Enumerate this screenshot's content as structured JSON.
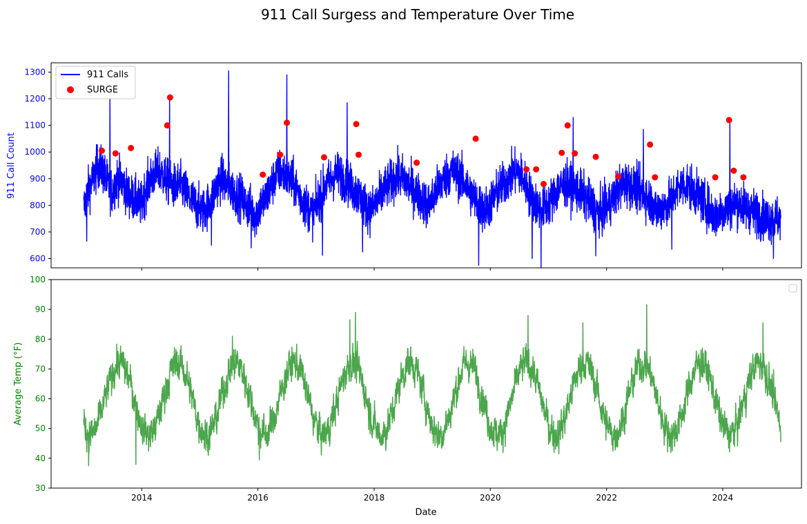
{
  "figure": {
    "title": "911 Call Surgess and Temperature Over Time"
  },
  "chart_data": [
    {
      "type": "line",
      "xlabel": "",
      "ylabel": "911 Call Count",
      "ylabel_color": "#0000ff",
      "xlim": [
        "2012-06-10",
        "2025-05-10"
      ],
      "ylim": [
        565,
        1335
      ],
      "x_ticks": [
        {
          "date": "2014-01-01",
          "label": "2014"
        },
        {
          "date": "2016-01-01",
          "label": "2016"
        },
        {
          "date": "2018-01-01",
          "label": "2018"
        },
        {
          "date": "2020-01-01",
          "label": "2020"
        },
        {
          "date": "2022-01-01",
          "label": "2022"
        },
        {
          "date": "2024-01-01",
          "label": "2024"
        }
      ],
      "y_ticks": [
        600,
        700,
        800,
        900,
        1000,
        1100,
        1200,
        1300
      ],
      "legend_position": "top-left",
      "grid": false,
      "series": [
        {
          "name": "911 Calls",
          "kind": "line",
          "color": "#0000ff",
          "x_range": [
            "2013-01-01",
            "2024-12-31"
          ],
          "x_step_days": 30,
          "values": [
            790,
            860,
            900,
            950,
            930,
            880,
            850,
            900,
            890,
            850,
            830,
            820,
            800,
            860,
            900,
            920,
            930,
            900,
            880,
            870,
            880,
            860,
            830,
            810,
            790,
            780,
            800,
            830,
            880,
            900,
            880,
            860,
            840,
            830,
            800,
            790,
            760,
            800,
            820,
            860,
            900,
            930,
            920,
            900,
            880,
            850,
            810,
            790,
            770,
            810,
            850,
            880,
            900,
            920,
            910,
            890,
            870,
            850,
            830,
            800,
            780,
            800,
            830,
            860,
            880,
            900,
            910,
            900,
            880,
            860,
            840,
            820,
            800,
            820,
            860,
            890,
            910,
            930,
            920,
            900,
            880,
            850,
            820,
            800,
            780,
            800,
            830,
            860,
            880,
            900,
            920,
            930,
            900,
            860,
            820,
            800,
            790,
            800,
            820,
            850,
            870,
            880,
            870,
            860,
            850,
            830,
            810,
            790,
            770,
            780,
            800,
            830,
            860,
            880,
            880,
            870,
            860,
            850,
            830,
            810,
            780,
            790,
            800,
            820,
            850,
            870,
            880,
            870,
            850,
            830,
            810,
            790,
            760,
            770,
            780,
            790,
            800,
            810,
            800,
            790,
            780,
            770,
            760,
            750
          ],
          "extremes": [
            {
              "date": "2013-01-20",
              "value": 665
            },
            {
              "date": "2013-06-15",
              "value": 1200
            },
            {
              "date": "2014-06-25",
              "value": 1205
            },
            {
              "date": "2015-03-15",
              "value": 650
            },
            {
              "date": "2015-07-01",
              "value": 1305
            },
            {
              "date": "2015-11-20",
              "value": 640
            },
            {
              "date": "2016-07-01",
              "value": 1290
            },
            {
              "date": "2017-02-10",
              "value": 612
            },
            {
              "date": "2017-07-15",
              "value": 1185
            },
            {
              "date": "2017-10-20",
              "value": 625
            },
            {
              "date": "2019-10-20",
              "value": 575
            },
            {
              "date": "2020-09-20",
              "value": 600
            },
            {
              "date": "2020-11-15",
              "value": 565
            },
            {
              "date": "2021-06-05",
              "value": 1130
            },
            {
              "date": "2021-10-25",
              "value": 610
            },
            {
              "date": "2022-08-20",
              "value": 1085
            },
            {
              "date": "2023-02-15",
              "value": 635
            },
            {
              "date": "2024-02-15",
              "value": 1120
            },
            {
              "date": "2024-11-15",
              "value": 600
            }
          ]
        },
        {
          "name": "SURGE",
          "kind": "scatter",
          "color": "#ff0000",
          "points": [
            {
              "date": "2013-04-25",
              "value": 1005
            },
            {
              "date": "2013-07-20",
              "value": 995
            },
            {
              "date": "2013-10-25",
              "value": 1015
            },
            {
              "date": "2014-06-10",
              "value": 1100
            },
            {
              "date": "2014-06-28",
              "value": 1205
            },
            {
              "date": "2016-02-01",
              "value": 915
            },
            {
              "date": "2016-05-20",
              "value": 990
            },
            {
              "date": "2016-07-01",
              "value": 1110
            },
            {
              "date": "2017-02-20",
              "value": 980
            },
            {
              "date": "2017-09-10",
              "value": 1105
            },
            {
              "date": "2017-09-25",
              "value": 990
            },
            {
              "date": "2018-09-25",
              "value": 960
            },
            {
              "date": "2019-10-01",
              "value": 1050
            },
            {
              "date": "2020-08-15",
              "value": 935
            },
            {
              "date": "2020-10-15",
              "value": 935
            },
            {
              "date": "2020-12-01",
              "value": 880
            },
            {
              "date": "2021-03-25",
              "value": 997
            },
            {
              "date": "2021-05-01",
              "value": 1100
            },
            {
              "date": "2021-06-15",
              "value": 995
            },
            {
              "date": "2021-10-25",
              "value": 982
            },
            {
              "date": "2022-03-15",
              "value": 908
            },
            {
              "date": "2022-10-01",
              "value": 1028
            },
            {
              "date": "2022-11-01",
              "value": 905
            },
            {
              "date": "2023-11-15",
              "value": 905
            },
            {
              "date": "2024-02-10",
              "value": 1120
            },
            {
              "date": "2024-03-10",
              "value": 930
            },
            {
              "date": "2024-05-10",
              "value": 905
            }
          ]
        }
      ]
    },
    {
      "type": "line",
      "xlabel": "Date",
      "ylabel": "Average Temp (°F)",
      "ylabel_color": "#008000",
      "xlim": [
        "2012-06-10",
        "2025-05-10"
      ],
      "ylim": [
        30,
        100
      ],
      "x_ticks": [
        {
          "date": "2014-01-01",
          "label": "2014"
        },
        {
          "date": "2016-01-01",
          "label": "2016"
        },
        {
          "date": "2018-01-01",
          "label": "2018"
        },
        {
          "date": "2020-01-01",
          "label": "2020"
        },
        {
          "date": "2022-01-01",
          "label": "2022"
        },
        {
          "date": "2024-01-01",
          "label": "2024"
        }
      ],
      "y_ticks": [
        30,
        40,
        50,
        60,
        70,
        80,
        90,
        100
      ],
      "legend_position": "top-right",
      "grid": false,
      "series": [
        {
          "kind": "line",
          "color": "#4ca64c",
          "x_range": [
            "2013-01-01",
            "2024-12-31"
          ],
          "seasonal_mean": 60,
          "seasonal_amplitude": 12,
          "peak_month": 7.5,
          "extremes": [
            {
              "date": "2013-02-01",
              "value": 37.5
            },
            {
              "date": "2013-11-25",
              "value": 38
            },
            {
              "date": "2015-07-25",
              "value": 81
            },
            {
              "date": "2016-01-10",
              "value": 39.5
            },
            {
              "date": "2017-08-01",
              "value": 86.5
            },
            {
              "date": "2017-09-05",
              "value": 89
            },
            {
              "date": "2020-08-25",
              "value": 88
            },
            {
              "date": "2021-08-05",
              "value": 85.5
            },
            {
              "date": "2022-09-10",
              "value": 91.5
            },
            {
              "date": "2024-09-10",
              "value": 85.5
            }
          ]
        }
      ]
    }
  ]
}
